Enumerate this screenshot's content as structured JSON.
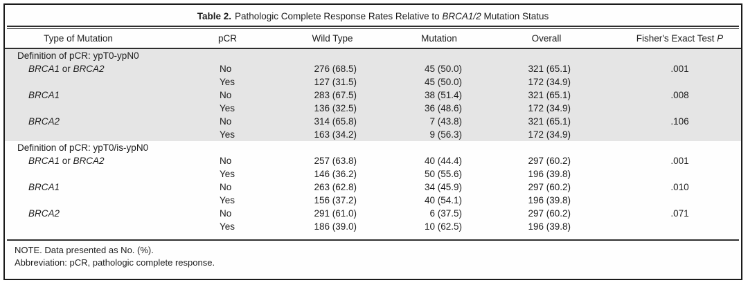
{
  "table": {
    "title": {
      "prefix": "Table 2.",
      "text": "Pathologic Complete Response Rates Relative to BRCA1/2 Mutation Status"
    },
    "columns": [
      "Type of Mutation",
      "pCR",
      "Wild Type",
      "Mutation",
      "Overall",
      "Fisher's Exact Test P"
    ],
    "sections": [
      {
        "label": "Definition of pCR: ypT0-ypN0",
        "shaded": true,
        "groups": [
          {
            "mutation_type": "BRCA1 or BRCA2",
            "rows": [
              {
                "pcr": "No",
                "wild_type": "276 (68.5)",
                "mutation": "45 (50.0)",
                "overall": "321 (65.1)",
                "p": ".001"
              },
              {
                "pcr": "Yes",
                "wild_type": "127 (31.5)",
                "mutation": "45 (50.0)",
                "overall": "172 (34.9)",
                "p": ""
              }
            ]
          },
          {
            "mutation_type": "BRCA1",
            "rows": [
              {
                "pcr": "No",
                "wild_type": "283 (67.5)",
                "mutation": "38 (51.4)",
                "overall": "321 (65.1)",
                "p": ".008"
              },
              {
                "pcr": "Yes",
                "wild_type": "136 (32.5)",
                "mutation": "36 (48.6)",
                "overall": "172 (34.9)",
                "p": ""
              }
            ]
          },
          {
            "mutation_type": "BRCA2",
            "rows": [
              {
                "pcr": "No",
                "wild_type": "314 (65.8)",
                "mutation": "7 (43.8)",
                "overall": "321 (65.1)",
                "p": ".106"
              },
              {
                "pcr": "Yes",
                "wild_type": "163 (34.2)",
                "mutation": "9 (56.3)",
                "overall": "172 (34.9)",
                "p": ""
              }
            ]
          }
        ]
      },
      {
        "label": "Definition of pCR: ypT0/is-ypN0",
        "shaded": false,
        "groups": [
          {
            "mutation_type": "BRCA1 or BRCA2",
            "rows": [
              {
                "pcr": "No",
                "wild_type": "257 (63.8)",
                "mutation": "40 (44.4)",
                "overall": "297 (60.2)",
                "p": ".001"
              },
              {
                "pcr": "Yes",
                "wild_type": "146 (36.2)",
                "mutation": "50 (55.6)",
                "overall": "196 (39.8)",
                "p": ""
              }
            ]
          },
          {
            "mutation_type": "BRCA1",
            "rows": [
              {
                "pcr": "No",
                "wild_type": "263 (62.8)",
                "mutation": "34 (45.9)",
                "overall": "297 (60.2)",
                "p": ".010"
              },
              {
                "pcr": "Yes",
                "wild_type": "156 (37.2)",
                "mutation": "40 (54.1)",
                "overall": "196 (39.8)",
                "p": ""
              }
            ]
          },
          {
            "mutation_type": "BRCA2",
            "rows": [
              {
                "pcr": "No",
                "wild_type": "291 (61.0)",
                "mutation": "6 (37.5)",
                "overall": "297 (60.2)",
                "p": ".071"
              },
              {
                "pcr": "Yes",
                "wild_type": "186 (39.0)",
                "mutation": "10 (62.5)",
                "overall": "196 (39.8)",
                "p": ""
              }
            ]
          }
        ]
      }
    ],
    "footnotes": [
      "NOTE. Data presented as No. (%).",
      "Abbreviation: pCR, pathologic complete response."
    ],
    "colors": {
      "shaded_row_bg": "#e5e5e5",
      "rule": "#2e2e2e",
      "text": "#1c1c1c"
    }
  }
}
